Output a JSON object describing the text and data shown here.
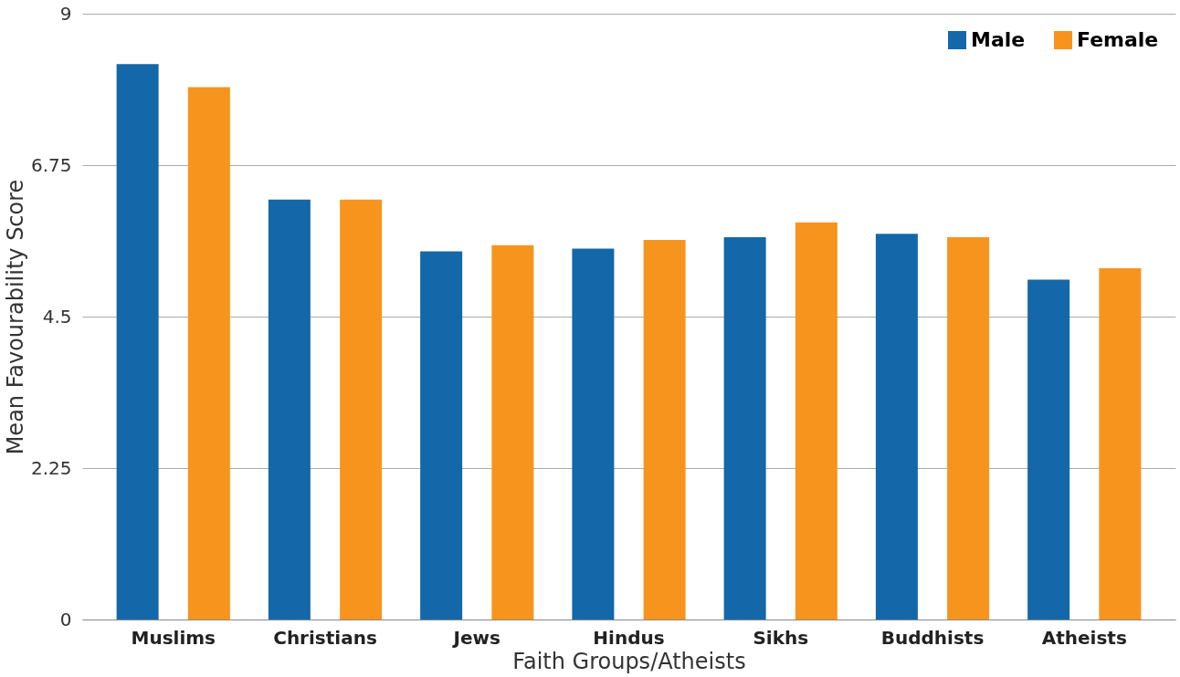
{
  "chart_data": {
    "type": "bar",
    "xlabel": "Faith Groups/Atheists",
    "ylabel": "Mean Favourability Score",
    "categories": [
      "Muslims",
      "Christians",
      "Jews",
      "Hindus",
      "Sikhs",
      "Buddhists",
      "Atheists"
    ],
    "series": [
      {
        "name": "Male",
        "color": "#1467a8",
        "values": [
          8.25,
          6.24,
          5.47,
          5.51,
          5.68,
          5.73,
          5.05
        ]
      },
      {
        "name": "Female",
        "color": "#f7941e",
        "values": [
          7.91,
          6.24,
          5.56,
          5.64,
          5.9,
          5.68,
          5.22
        ]
      }
    ],
    "ylim": [
      0,
      9
    ],
    "yticks": [
      0,
      2.25,
      4.5,
      6.75,
      9
    ],
    "grid": "y",
    "legend": "top right"
  }
}
